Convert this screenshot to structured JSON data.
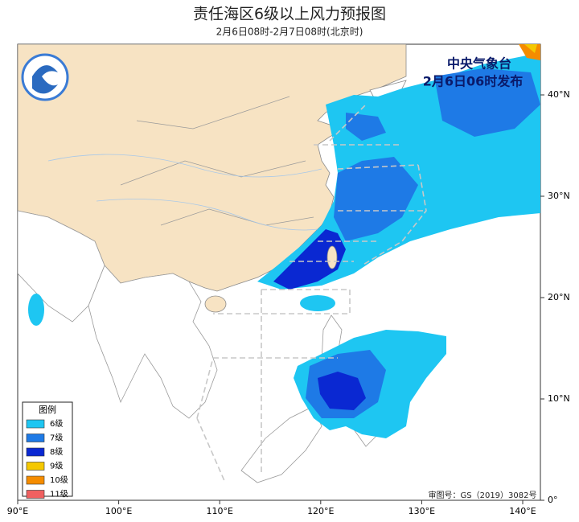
{
  "header": {
    "title": "责任海区6级以上风力预报图",
    "subtitle": "2月6日08时-2月7日08时(北京时)"
  },
  "issuer": {
    "name": "中央气象台",
    "time": "2月6日06时发布"
  },
  "legend": {
    "title": "图例",
    "items": [
      {
        "label": "6级",
        "color": "#1ec6f2"
      },
      {
        "label": "7级",
        "color": "#1e7ae6"
      },
      {
        "label": "8级",
        "color": "#0a28d2"
      },
      {
        "label": "9级",
        "color": "#f5c800"
      },
      {
        "label": "10级",
        "color": "#f58c00"
      },
      {
        "label": "11级",
        "color": "#f06060"
      }
    ]
  },
  "axes": {
    "longitude": [
      "90°E",
      "100°E",
      "110°E",
      "120°E",
      "130°E",
      "140°E"
    ],
    "latitude": [
      "40°N",
      "30°N",
      "20°N",
      "10°N",
      "0°"
    ]
  },
  "footer": {
    "review_number": "审图号：GS（2019）3082号"
  }
}
